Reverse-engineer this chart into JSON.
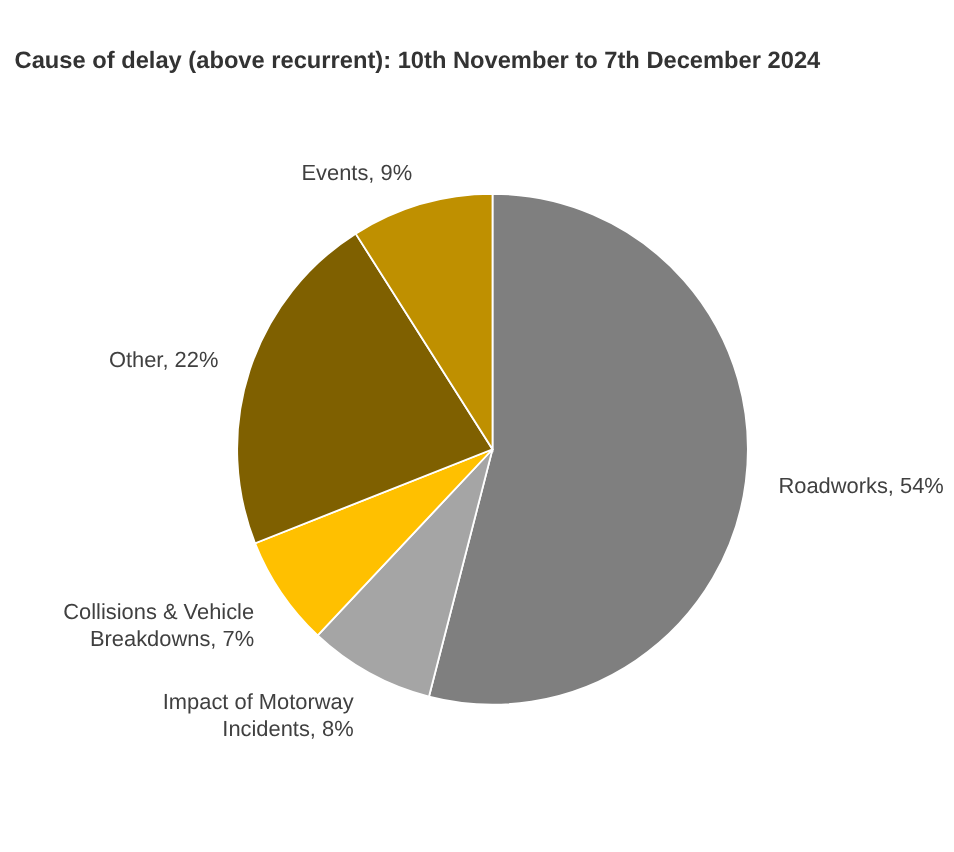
{
  "chart_data": {
    "type": "pie",
    "title": "Cause of delay (above recurrent): 10th November to 7th December 2024",
    "categories": [
      "Roadworks",
      "Impact of Motorway Incidents",
      "Collisions & Vehicle Breakdowns",
      "Other",
      "Events"
    ],
    "values": [
      54,
      8,
      7,
      22,
      9
    ],
    "value_labels": [
      "54%",
      "8%",
      "7%",
      "22%",
      "9%"
    ],
    "colors": [
      "#7f7f7f",
      "#a5a5a5",
      "#ffc000",
      "#7f6000",
      "#bf9000"
    ],
    "legend": false
  }
}
